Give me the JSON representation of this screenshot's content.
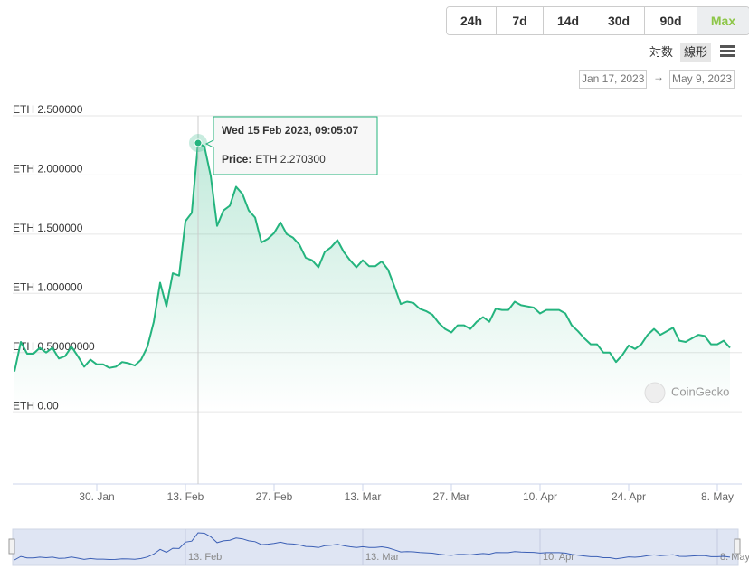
{
  "toolbar": {
    "ranges": [
      "24h",
      "7d",
      "14d",
      "30d",
      "90d",
      "Max"
    ],
    "active_range": "Max",
    "scales": [
      "対数",
      "線形"
    ],
    "active_scale": "線形"
  },
  "date_range": {
    "from": "Jan 17, 2023",
    "arrow": "→",
    "to": "May 9, 2023"
  },
  "watermark": "CoinGecko",
  "chart_data": {
    "type": "area",
    "color": "#24b47e",
    "grid": true,
    "x": [
      "2023-01-17",
      "2023-01-18",
      "2023-01-19",
      "2023-01-20",
      "2023-01-21",
      "2023-01-22",
      "2023-01-23",
      "2023-01-24",
      "2023-01-25",
      "2023-01-26",
      "2023-01-27",
      "2023-01-28",
      "2023-01-29",
      "2023-01-30",
      "2023-01-31",
      "2023-02-01",
      "2023-02-02",
      "2023-02-03",
      "2023-02-04",
      "2023-02-05",
      "2023-02-06",
      "2023-02-07",
      "2023-02-08",
      "2023-02-09",
      "2023-02-10",
      "2023-02-11",
      "2023-02-12",
      "2023-02-13",
      "2023-02-14",
      "2023-02-15",
      "2023-02-16",
      "2023-02-17",
      "2023-02-18",
      "2023-02-19",
      "2023-02-20",
      "2023-02-21",
      "2023-02-22",
      "2023-02-23",
      "2023-02-24",
      "2023-02-25",
      "2023-02-26",
      "2023-02-27",
      "2023-02-28",
      "2023-03-01",
      "2023-03-02",
      "2023-03-03",
      "2023-03-04",
      "2023-03-05",
      "2023-03-06",
      "2023-03-07",
      "2023-03-08",
      "2023-03-09",
      "2023-03-10",
      "2023-03-11",
      "2023-03-12",
      "2023-03-13",
      "2023-03-14",
      "2023-03-15",
      "2023-03-16",
      "2023-03-17",
      "2023-03-18",
      "2023-03-19",
      "2023-03-20",
      "2023-03-21",
      "2023-03-22",
      "2023-03-23",
      "2023-03-24",
      "2023-03-25",
      "2023-03-26",
      "2023-03-27",
      "2023-03-28",
      "2023-03-29",
      "2023-03-30",
      "2023-03-31",
      "2023-04-01",
      "2023-04-02",
      "2023-04-03",
      "2023-04-04",
      "2023-04-05",
      "2023-04-06",
      "2023-04-07",
      "2023-04-08",
      "2023-04-09",
      "2023-04-10",
      "2023-04-11",
      "2023-04-12",
      "2023-04-13",
      "2023-04-14",
      "2023-04-15",
      "2023-04-16",
      "2023-04-17",
      "2023-04-18",
      "2023-04-19",
      "2023-04-20",
      "2023-04-21",
      "2023-04-22",
      "2023-04-23",
      "2023-04-24",
      "2023-04-25",
      "2023-04-26",
      "2023-04-27",
      "2023-04-28",
      "2023-04-29",
      "2023-04-30",
      "2023-05-01",
      "2023-05-02",
      "2023-05-03",
      "2023-05-04",
      "2023-05-05",
      "2023-05-06",
      "2023-05-07",
      "2023-05-08",
      "2023-05-09",
      "2023-05-10"
    ],
    "values": [
      0.34,
      0.59,
      0.49,
      0.49,
      0.54,
      0.5,
      0.54,
      0.45,
      0.47,
      0.55,
      0.47,
      0.38,
      0.44,
      0.4,
      0.4,
      0.37,
      0.38,
      0.42,
      0.41,
      0.39,
      0.44,
      0.55,
      0.76,
      1.09,
      0.89,
      1.17,
      1.15,
      1.61,
      1.68,
      2.2703,
      2.24,
      1.99,
      1.57,
      1.7,
      1.74,
      1.9,
      1.84,
      1.7,
      1.64,
      1.43,
      1.46,
      1.51,
      1.6,
      1.5,
      1.47,
      1.41,
      1.3,
      1.28,
      1.22,
      1.35,
      1.39,
      1.45,
      1.35,
      1.28,
      1.22,
      1.28,
      1.23,
      1.23,
      1.27,
      1.2,
      1.06,
      0.91,
      0.93,
      0.92,
      0.87,
      0.85,
      0.82,
      0.75,
      0.7,
      0.67,
      0.73,
      0.73,
      0.7,
      0.76,
      0.8,
      0.76,
      0.87,
      0.86,
      0.86,
      0.93,
      0.9,
      0.89,
      0.88,
      0.83,
      0.86,
      0.86,
      0.86,
      0.83,
      0.73,
      0.68,
      0.62,
      0.57,
      0.57,
      0.5,
      0.5,
      0.42,
      0.48,
      0.56,
      0.53,
      0.57,
      0.65,
      0.7,
      0.65,
      0.68,
      0.71,
      0.6,
      0.59,
      0.62,
      0.65,
      0.64,
      0.57,
      0.57,
      0.6,
      0.54
    ],
    "xlim": [
      "2023-01-17",
      "2023-05-11"
    ],
    "xticks": [
      {
        "value": "2023-01-30",
        "label": "30. Jan"
      },
      {
        "value": "2023-02-13",
        "label": "13. Feb"
      },
      {
        "value": "2023-02-27",
        "label": "27. Feb"
      },
      {
        "value": "2023-03-13",
        "label": "13. Mar"
      },
      {
        "value": "2023-03-27",
        "label": "27. Mar"
      },
      {
        "value": "2023-04-10",
        "label": "10. Apr"
      },
      {
        "value": "2023-04-24",
        "label": "24. Apr"
      },
      {
        "value": "2023-05-08",
        "label": "8. May"
      }
    ],
    "ylim": [
      -0.61,
      2.5
    ],
    "yticks": [
      {
        "value": 2.5,
        "label": "ETH 2.500000"
      },
      {
        "value": 2.0,
        "label": "ETH 2.000000"
      },
      {
        "value": 1.5,
        "label": "ETH 1.500000"
      },
      {
        "value": 1.0,
        "label": "ETH 1.000000"
      },
      {
        "value": 0.5,
        "label": "ETH 0.50000000"
      },
      {
        "value": 0,
        "label": "ETH 0.00"
      }
    ],
    "tooltip": {
      "title": "Wed 15 Feb 2023, 09:05:07",
      "label": "Price:",
      "value": "ETH 2.270300"
    }
  }
}
